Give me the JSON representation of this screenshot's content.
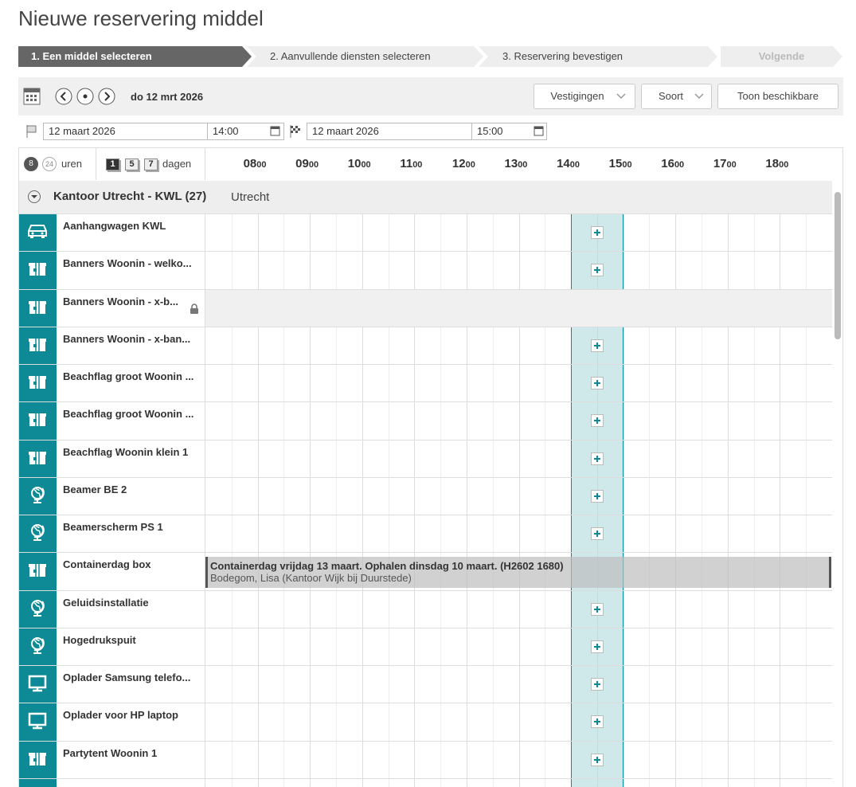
{
  "header": {
    "title": "Nieuwe reservering middel"
  },
  "steps": [
    "1. Een middel selecteren",
    "2. Aanvullende diensten selecteren",
    "3. Reservering bevestigen",
    "Volgende"
  ],
  "toolbar": {
    "date": "do 12 mrt 2026",
    "buttons": [
      "Vestigingen",
      "Soort",
      "Toon beschikbare"
    ]
  },
  "period": {
    "start_date": "12 maart 2026",
    "start_time": "14:00",
    "end_date": "12 maart 2026",
    "end_time": "15:00"
  },
  "scale": {
    "hour_options": [
      "8",
      "24"
    ],
    "hour_label": "uren",
    "day_options": [
      "1",
      "5",
      "7"
    ],
    "day_label": "dagen"
  },
  "timeline": {
    "hours": [
      {
        "h": "08",
        "m": "00"
      },
      {
        "h": "09",
        "m": "00"
      },
      {
        "h": "10",
        "m": "00"
      },
      {
        "h": "11",
        "m": "00"
      },
      {
        "h": "12",
        "m": "00"
      },
      {
        "h": "13",
        "m": "00"
      },
      {
        "h": "14",
        "m": "00"
      },
      {
        "h": "15",
        "m": "00"
      },
      {
        "h": "16",
        "m": "00"
      },
      {
        "h": "17",
        "m": "00"
      },
      {
        "h": "18",
        "m": "00"
      }
    ]
  },
  "group": {
    "name": "Kantoor Utrecht - KWL (27)",
    "location": "Utrecht"
  },
  "resources": [
    {
      "name": "Aanhangwagen KWL",
      "icon": "car"
    },
    {
      "name": "Banners Woonin - welko...",
      "icon": "box"
    },
    {
      "name": "Banners Woonin - x-b...",
      "icon": "box",
      "locked": true
    },
    {
      "name": "Banners Woonin - x-ban...",
      "icon": "box"
    },
    {
      "name": "Beachflag groot Woonin ...",
      "icon": "box"
    },
    {
      "name": "Beachflag groot Woonin ...",
      "icon": "box"
    },
    {
      "name": "Beachflag Woonin klein 1",
      "icon": "box"
    },
    {
      "name": "Beamer BE 2",
      "icon": "globe"
    },
    {
      "name": "Beamerscherm PS 1",
      "icon": "globe"
    },
    {
      "name": "Containerdag box",
      "icon": "box",
      "reservation": {
        "title": "Containerdag vrijdag 13 maart. Ophalen dinsdag 10 maart. (H2602 1680)",
        "detail": "Bodegom, Lisa (Kantoor Wijk bij Duurstede)"
      }
    },
    {
      "name": "Geluidsinstallatie",
      "icon": "globe"
    },
    {
      "name": "Hogedrukspuit",
      "icon": "globe"
    },
    {
      "name": "Oplader Samsung telefo...",
      "icon": "monitor"
    },
    {
      "name": "Oplader voor HP laptop",
      "icon": "monitor"
    },
    {
      "name": "Partytent Woonin 1",
      "icon": "box"
    }
  ]
}
